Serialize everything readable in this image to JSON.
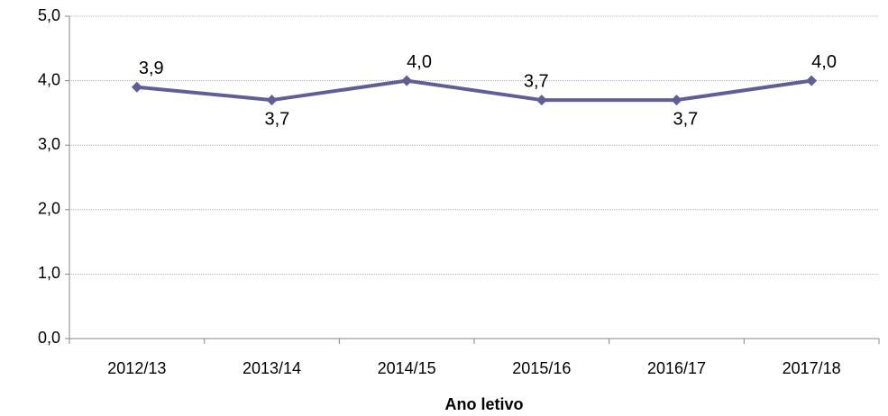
{
  "chart_data": {
    "type": "line",
    "x_label": "Ano letivo",
    "categories": [
      "2012/13",
      "2013/14",
      "2014/15",
      "2015/16",
      "2016/17",
      "2017/18"
    ],
    "series": [
      {
        "color": "#5f5f96",
        "values": [
          3.9,
          3.7,
          4.0,
          3.7,
          3.7,
          4.0
        ],
        "value_labels": [
          "3,9",
          "3,7",
          "4,0",
          "3,7",
          "3,7",
          "4,0"
        ]
      }
    ],
    "ylim": [
      0,
      5
    ],
    "yticks": [
      {
        "value": 0,
        "label": "0,0"
      },
      {
        "value": 1,
        "label": "1,0"
      },
      {
        "value": 2,
        "label": "2,0"
      },
      {
        "value": 3,
        "label": "3,0"
      },
      {
        "value": 4,
        "label": "4,0"
      },
      {
        "value": 5,
        "label": "5,0"
      }
    ],
    "grid": true
  }
}
